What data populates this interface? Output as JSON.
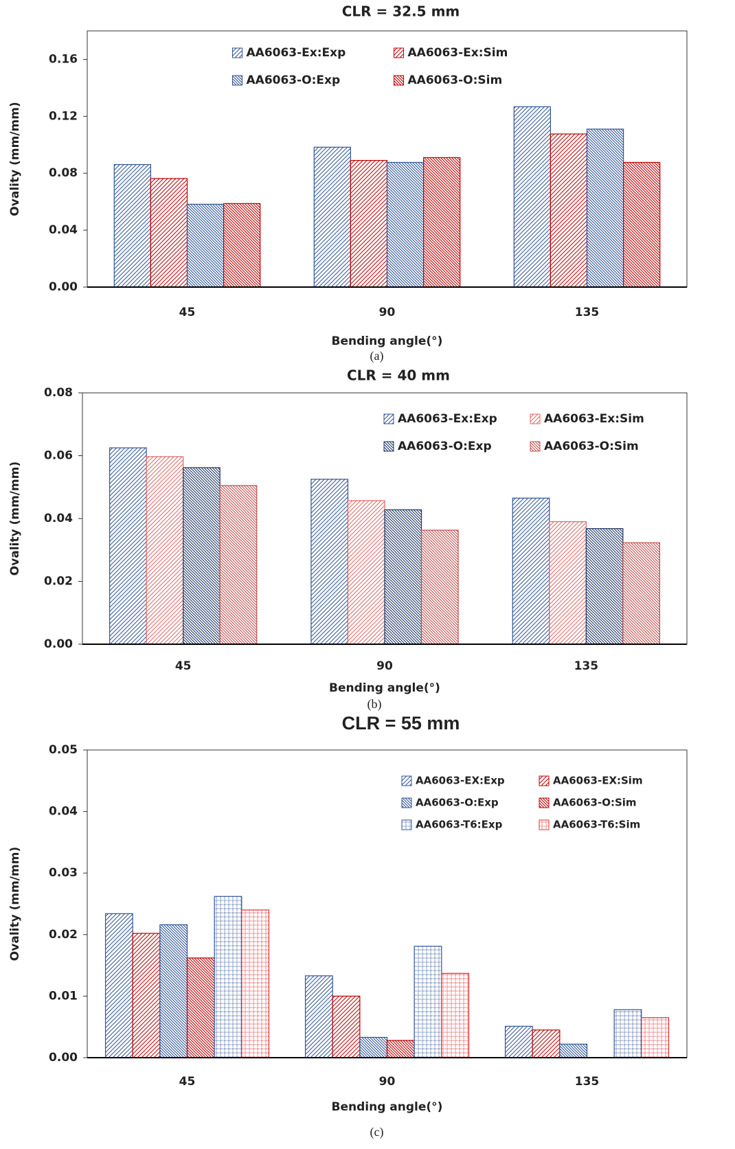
{
  "chart_data": [
    {
      "type": "bar",
      "title": "CLR = 32.5 mm",
      "xlabel": "Bending angle(°)",
      "ylabel": "Ovality (mm/mm)",
      "caption": "(a)",
      "categories": [
        "45",
        "90",
        "135"
      ],
      "series": [
        {
          "name": "AA6063-Ex:Exp",
          "color": "#2f5597",
          "pattern": "forward",
          "values": [
            0.0861,
            0.0983,
            0.1267
          ]
        },
        {
          "name": "AA6063-Ex:Sim",
          "color": "#c00000",
          "pattern": "forward",
          "values": [
            0.0763,
            0.089,
            0.1076
          ]
        },
        {
          "name": "AA6063-O:Exp",
          "color": "#2f5597",
          "pattern": "backward",
          "values": [
            0.0582,
            0.0876,
            0.111
          ]
        },
        {
          "name": "AA6063-O:Sim",
          "color": "#c00000",
          "pattern": "backward",
          "values": [
            0.0587,
            0.091,
            0.0876
          ]
        }
      ],
      "ylim": [
        0,
        0.18
      ],
      "yticks": [
        {
          "value": 0,
          "label": "0.00"
        },
        0.04,
        0.08,
        0.12,
        0.16
      ],
      "legend_position": "top"
    },
    {
      "type": "bar",
      "title": "CLR = 40 mm",
      "xlabel": "Bending angle(°)",
      "ylabel": "Ovality (mm/mm)",
      "caption": "(b)",
      "categories": [
        "45",
        "90",
        "135"
      ],
      "series": [
        {
          "name": "AA6063-Ex:Exp",
          "color": "#2f5597",
          "pattern": "forward",
          "values": [
            0.0625,
            0.0525,
            0.0465
          ]
        },
        {
          "name": "AA6063-Ex:Sim",
          "color": "#e06666",
          "pattern": "forward",
          "values": [
            0.0597,
            0.0457,
            0.039
          ]
        },
        {
          "name": "AA6063-O:Exp",
          "color": "#203864",
          "pattern": "backward",
          "values": [
            0.0562,
            0.0428,
            0.0368
          ]
        },
        {
          "name": "AA6063-O:Sim",
          "color": "#c0504d",
          "pattern": "backward",
          "values": [
            0.0505,
            0.0363,
            0.0323
          ]
        }
      ],
      "ylim": [
        0,
        0.08
      ],
      "yticks": [
        {
          "value": 0,
          "label": "0.00"
        },
        0.02,
        0.04,
        0.06,
        0.08
      ],
      "legend_position": "upper right"
    },
    {
      "type": "bar",
      "title": "CLR = 55 mm",
      "xlabel": "Bending angle(°)",
      "ylabel": "Ovality (mm/mm)",
      "caption": "(c)",
      "categories": [
        "45",
        "90",
        "135"
      ],
      "series": [
        {
          "name": "AA6063-EX:Exp",
          "color": "#2f5597",
          "pattern": "forward",
          "values": [
            0.0234,
            0.0133,
            0.0051
          ]
        },
        {
          "name": "AA6063-EX:Sim",
          "color": "#c00000",
          "pattern": "forward",
          "values": [
            0.0202,
            0.01,
            0.0045
          ]
        },
        {
          "name": "AA6063-O:Exp",
          "color": "#2f5597",
          "pattern": "backward",
          "values": [
            0.0216,
            0.0033,
            0.0022
          ]
        },
        {
          "name": "AA6063-O:Sim",
          "color": "#c00000",
          "pattern": "backward",
          "values": [
            0.0162,
            0.0028,
            0
          ]
        },
        {
          "name": "AA6063-T6:Exp",
          "color": "#2f5597",
          "pattern": "grid",
          "values": [
            0.0262,
            0.0181,
            0.0078
          ]
        },
        {
          "name": "AA6063-T6:Sim",
          "color": "#e03030",
          "pattern": "grid",
          "values": [
            0.024,
            0.0137,
            0.0065
          ]
        }
      ],
      "ylim": [
        0,
        0.05
      ],
      "yticks": [
        {
          "value": 0,
          "label": "0.00"
        },
        0.01,
        0.02,
        0.03,
        0.04,
        0.05
      ],
      "legend_position": "upper right"
    }
  ]
}
